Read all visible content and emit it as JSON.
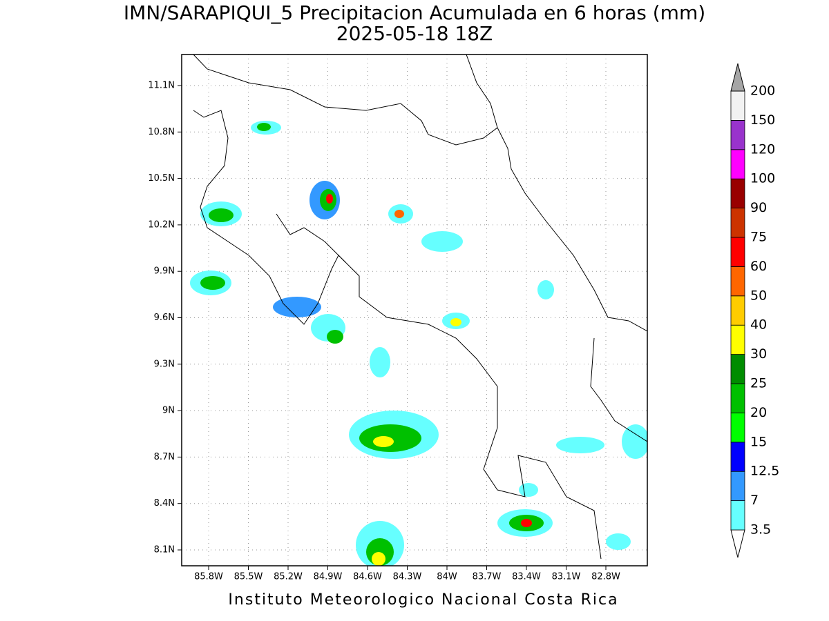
{
  "title": "IMN/SARAPIQUI_5 Precipitacion Acumulada en 6 horas (mm)",
  "subtitle": "2025-05-18 18Z",
  "footer": "Instituto Meteorologico Nacional Costa Rica",
  "map": {
    "lat_labels": [
      "11.1N",
      "10.8N",
      "10.5N",
      "10.2N",
      "9.9N",
      "9.6N",
      "9.3N",
      "9N",
      "8.7N",
      "8.4N",
      "8.1N"
    ],
    "lon_labels": [
      "85.8W",
      "85.5W",
      "85.2W",
      "84.9W",
      "84.6W",
      "84.3W",
      "84W",
      "83.7W",
      "83.4W",
      "83.1W",
      "82.8W"
    ]
  },
  "legend": {
    "levels": [
      3.5,
      7,
      12.5,
      15,
      20,
      25,
      30,
      40,
      50,
      60,
      75,
      90,
      100,
      120,
      150,
      200
    ],
    "below_color": "#ffffff",
    "colors": [
      "#66ffff",
      "#3399ff",
      "#0000ff",
      "#00ff00",
      "#00c000",
      "#008c00",
      "#ffff00",
      "#ffcc00",
      "#ff6600",
      "#ff0000",
      "#cc3300",
      "#990000",
      "#ff00ff",
      "#9933cc",
      "#f2f2f2"
    ],
    "above_color": "#a6a6a6"
  }
}
